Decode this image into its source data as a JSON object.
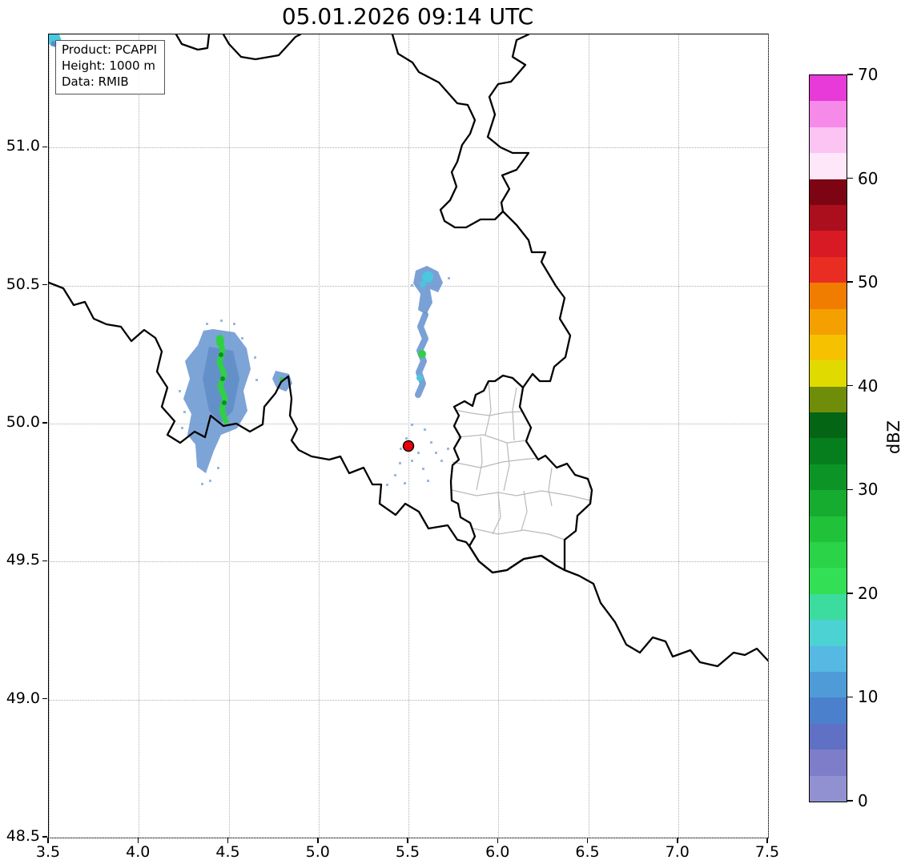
{
  "title": "05.01.2026 09:14 UTC",
  "info_box": {
    "lines": [
      "Product: PCAPPI",
      "Height: 1000 m",
      "Data: RMIB"
    ]
  },
  "axes": {
    "x_label_values": [
      "3.5",
      "4.0",
      "4.5",
      "5.0",
      "5.5",
      "6.0",
      "6.5",
      "7.0",
      "7.5"
    ],
    "y_label_values": [
      "51.0",
      "50.5",
      "50.0",
      "49.5",
      "49.0",
      "48.5"
    ],
    "x_range": [
      3.5,
      7.5
    ],
    "y_range": [
      48.5,
      51.41
    ],
    "grid": "dotted"
  },
  "colorbar": {
    "label": "dBZ",
    "min": 0,
    "max": 70,
    "tick_values": [
      0,
      10,
      20,
      30,
      40,
      50,
      60,
      70
    ],
    "colors_bottom_to_top": [
      "#9191d1",
      "#7d7dc9",
      "#6070c4",
      "#4b80cc",
      "#4f9bd7",
      "#56b9e3",
      "#4cd2d3",
      "#3cdc9e",
      "#33df55",
      "#2ad347",
      "#20c23a",
      "#16ac2f",
      "#0c9526",
      "#067e1d",
      "#046615",
      "#6f8d08",
      "#e1da00",
      "#f6c200",
      "#f4a000",
      "#f07c00",
      "#ea2d22",
      "#d81a24",
      "#ab0e1d",
      "#7d0513",
      "#fde7f8",
      "#fbc4f3",
      "#f68ae9",
      "#e73ad8"
    ]
  },
  "map": {
    "radar_site_marker": {
      "lon": 5.5,
      "lat": 49.92,
      "color": "#e8000d"
    },
    "echo_regions": [
      {
        "name": "echo-west",
        "approx_lon": [
          4.2,
          4.7
        ],
        "approx_lat": [
          49.8,
          50.35
        ],
        "max_dbz": 25
      },
      {
        "name": "echo-central-streak",
        "approx_lon": [
          5.45,
          5.72
        ],
        "approx_lat": [
          49.9,
          50.57
        ],
        "max_dbz": 20
      },
      {
        "name": "echo-top-left-corner",
        "approx_lon": [
          3.5,
          3.57
        ],
        "approx_lat": [
          51.35,
          51.41
        ],
        "max_dbz": 15
      }
    ]
  }
}
